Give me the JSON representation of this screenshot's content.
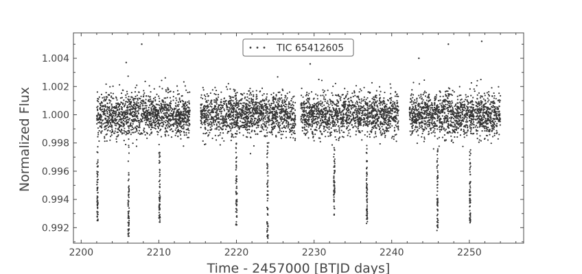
{
  "chart_data": {
    "type": "scatter",
    "title": "",
    "xlabel": "Time - 2457000 [BTJD days]",
    "ylabel": "Normalized Flux",
    "xlim": [
      2199,
      2257
    ],
    "ylim": [
      0.9909,
      1.0058
    ],
    "x_ticks": [
      2200,
      2210,
      2220,
      2230,
      2240,
      2250
    ],
    "y_ticks": [
      0.992,
      0.994,
      0.996,
      0.998,
      1.0,
      1.002,
      1.004
    ],
    "x_tick_labels": [
      "2200",
      "2210",
      "2220",
      "2230",
      "2240",
      "2250"
    ],
    "y_tick_labels": [
      "0.992",
      "0.994",
      "0.996",
      "0.998",
      "1.000",
      "1.002",
      "1.004"
    ],
    "legend": {
      "position": "top-center",
      "entries": [
        "TIC 65412605"
      ]
    },
    "grid": false,
    "colors": {
      "points": "#333333",
      "frame": "#444444",
      "legend_border": "#666666"
    },
    "series": [
      {
        "name": "TIC 65412605",
        "baseline_flux": 1.0,
        "typical_scatter": 0.0009,
        "data_segments": [
          {
            "x_start": 2202.0,
            "x_end": 2214.0
          },
          {
            "x_start": 2215.4,
            "x_end": 2227.6
          },
          {
            "x_start": 2228.3,
            "x_end": 2240.9
          },
          {
            "x_start": 2242.3,
            "x_end": 2254.0
          }
        ],
        "transits": [
          {
            "x": 2202.1,
            "min_flux": 0.9925
          },
          {
            "x": 2206.1,
            "min_flux": 0.9914
          },
          {
            "x": 2210.1,
            "min_flux": 0.9924
          },
          {
            "x": 2220.0,
            "min_flux": 0.9922
          },
          {
            "x": 2224.0,
            "min_flux": 0.991
          },
          {
            "x": 2232.6,
            "min_flux": 0.9929
          },
          {
            "x": 2236.8,
            "min_flux": 0.9923
          },
          {
            "x": 2245.9,
            "min_flux": 0.9918
          },
          {
            "x": 2250.1,
            "min_flux": 0.9922
          }
        ],
        "outliers": [
          {
            "x": 2207.8,
            "y": 1.005
          },
          {
            "x": 2229.5,
            "y": 1.0036
          },
          {
            "x": 2243.5,
            "y": 1.004
          },
          {
            "x": 2247.3,
            "y": 1.005
          },
          {
            "x": 2251.6,
            "y": 1.0052
          },
          {
            "x": 2205.8,
            "y": 1.0037
          }
        ]
      }
    ]
  }
}
